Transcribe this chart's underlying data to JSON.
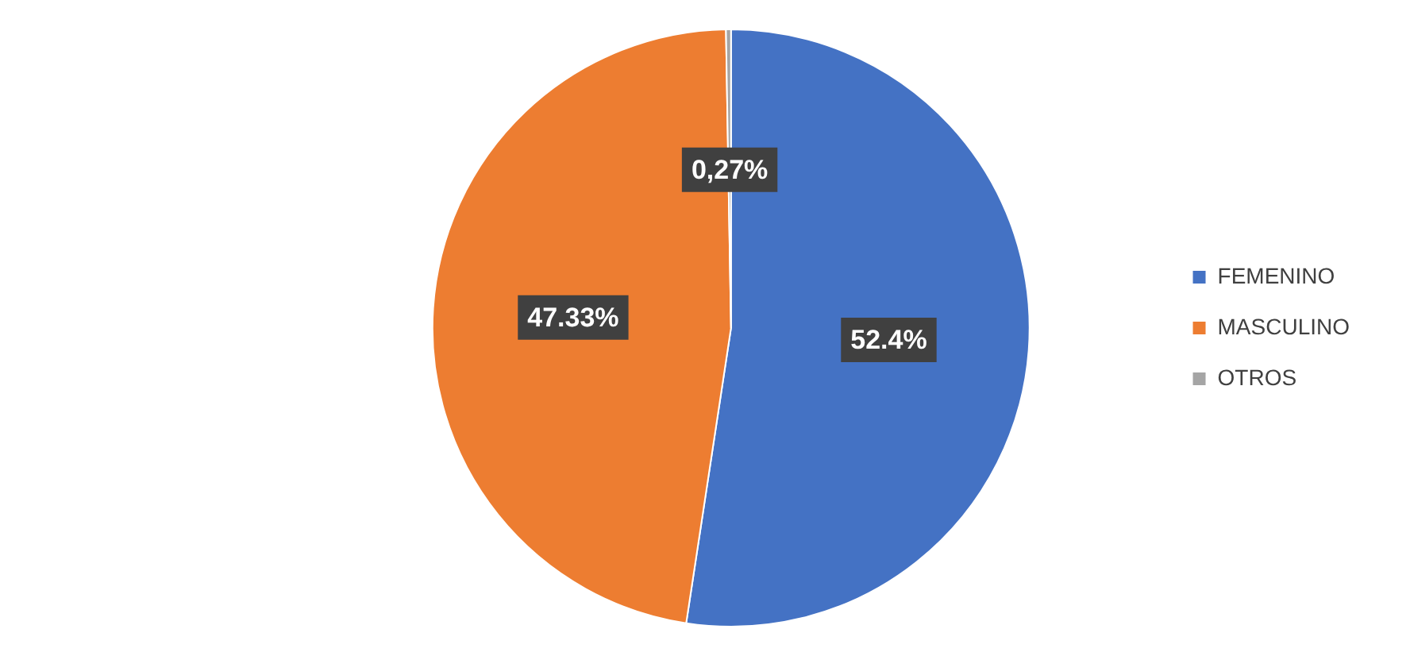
{
  "chart_data": {
    "type": "pie",
    "categories": [
      "FEMENINO",
      "MASCULINO",
      "OTROS"
    ],
    "values": [
      52.4,
      47.33,
      0.27
    ],
    "colors": [
      "#4472c4",
      "#ed7d31",
      "#a5a5a5"
    ],
    "value_labels": [
      "52.4%",
      "47.33%",
      "0,27%"
    ],
    "legend": "right"
  }
}
